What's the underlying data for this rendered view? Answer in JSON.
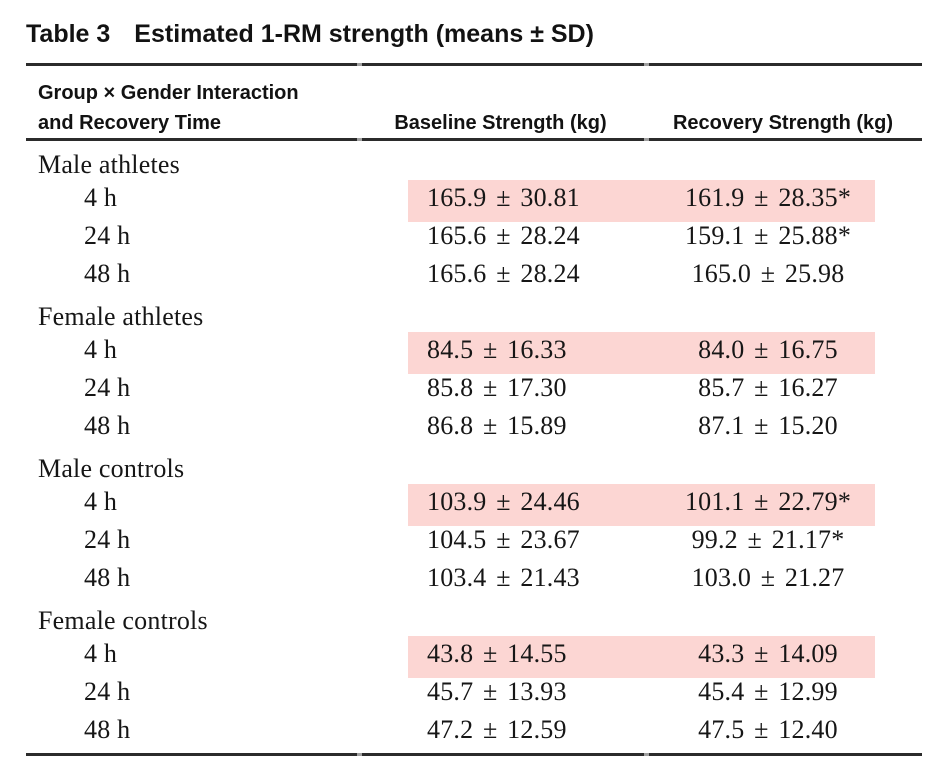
{
  "title": {
    "label": "Table 3",
    "text": "Estimated 1-RM strength (means ± SD)"
  },
  "header": {
    "col1_line1": "Group × Gender Interaction",
    "col1_line2": "and Recovery Time",
    "col2": "Baseline Strength (kg)",
    "col3": "Recovery Strength (kg)"
  },
  "colors": {
    "highlight_pink": "#fcd6d3",
    "rule": "#2b2b2b",
    "text": "#161616"
  },
  "sections": [
    {
      "label": "Male athletes",
      "rows": [
        {
          "time": "4 h",
          "baseline": "165.9 ± 30.81",
          "recovery": "161.9 ± 28.35*",
          "highlight": true
        },
        {
          "time": "24 h",
          "baseline": "165.6 ± 28.24",
          "recovery": "159.1 ± 25.88*",
          "highlight": false
        },
        {
          "time": "48 h",
          "baseline": "165.6 ± 28.24",
          "recovery": "165.0 ± 25.98",
          "highlight": false
        }
      ]
    },
    {
      "label": "Female athletes",
      "rows": [
        {
          "time": "4 h",
          "baseline": "84.5 ± 16.33",
          "recovery": "84.0 ± 16.75",
          "highlight": true
        },
        {
          "time": "24 h",
          "baseline": "85.8 ± 17.30",
          "recovery": "85.7 ± 16.27",
          "highlight": false
        },
        {
          "time": "48 h",
          "baseline": "86.8 ± 15.89",
          "recovery": "87.1 ± 15.20",
          "highlight": false
        }
      ]
    },
    {
      "label": "Male controls",
      "rows": [
        {
          "time": "4 h",
          "baseline": "103.9 ± 24.46",
          "recovery": "101.1 ± 22.79*",
          "highlight": true
        },
        {
          "time": "24 h",
          "baseline": "104.5 ± 23.67",
          "recovery": "99.2 ± 21.17*",
          "highlight": false
        },
        {
          "time": "48 h",
          "baseline": "103.4 ± 21.43",
          "recovery": "103.0 ± 21.27",
          "highlight": false
        }
      ]
    },
    {
      "label": "Female controls",
      "rows": [
        {
          "time": "4 h",
          "baseline": "43.8 ± 14.55",
          "recovery": "43.3 ± 14.09",
          "highlight": true
        },
        {
          "time": "24 h",
          "baseline": "45.7 ± 13.93",
          "recovery": "45.4 ± 12.99",
          "highlight": false
        },
        {
          "time": "48 h",
          "baseline": "47.2 ± 12.59",
          "recovery": "47.5 ± 12.40",
          "highlight": false
        }
      ]
    }
  ]
}
